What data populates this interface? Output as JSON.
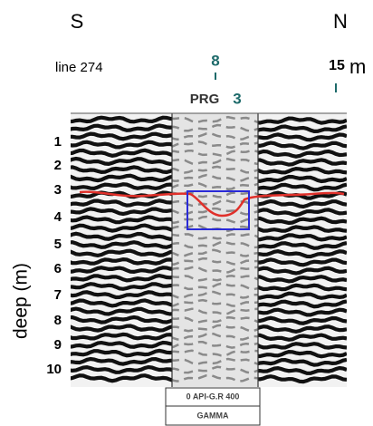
{
  "header": {
    "south": "S",
    "north": "N",
    "line": "line 274",
    "marker_top": "8",
    "distance": "15",
    "distance_unit": "m",
    "well": "PRG",
    "well_number": "3"
  },
  "depth_axis": {
    "title": "deep (m)",
    "labels": [
      "1",
      "2",
      "3",
      "4",
      "5",
      "6",
      "7",
      "8",
      "9",
      "10"
    ]
  },
  "log_box": {
    "scale": "0 API-G.R 400",
    "name": "GAMMA"
  }
}
